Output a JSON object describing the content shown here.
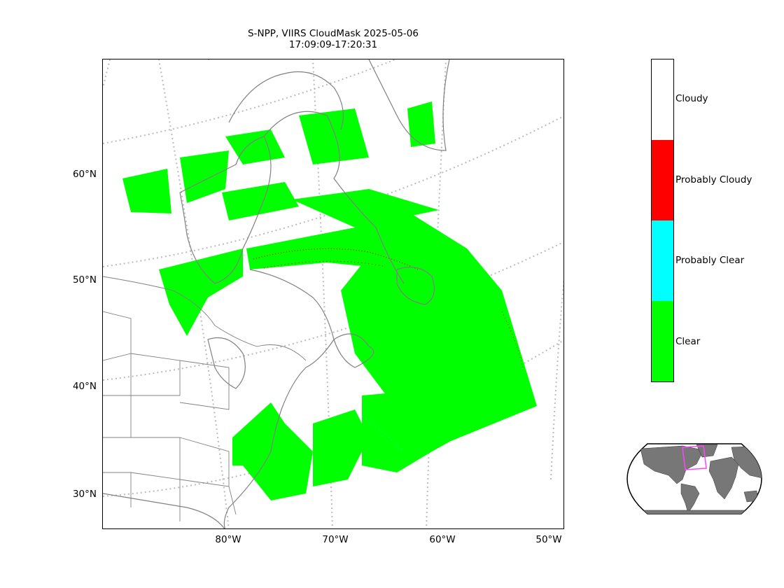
{
  "title": {
    "line1": "S-NPP, VIIRS CloudMask 2025-05-06",
    "line2": "17:09:09-17:20:31"
  },
  "map": {
    "lat_ticks": [
      "60°N",
      "50°N",
      "40°N",
      "30°N"
    ],
    "lon_ticks": [
      "80°W",
      "70°W",
      "60°W",
      "50°W"
    ],
    "lat_range": [
      27,
      70
    ],
    "lon_range": [
      -90,
      -50
    ],
    "gridlines": "dotted",
    "coastline_color": "#808080",
    "border_color": "#808080",
    "gridline_color": "#bbbbbb"
  },
  "legend": {
    "classes": [
      {
        "label": "Clear",
        "color": "#00ff00"
      },
      {
        "label": "Probably Clear",
        "color": "#00ffff"
      },
      {
        "label": "Probably Cloudy",
        "color": "#ff0000"
      },
      {
        "label": "Cloudy",
        "color": "#ffffff"
      }
    ]
  },
  "inset": {
    "land_color": "#777777",
    "ocean_color": "#ffffff",
    "region_color": "#ff44ff"
  }
}
